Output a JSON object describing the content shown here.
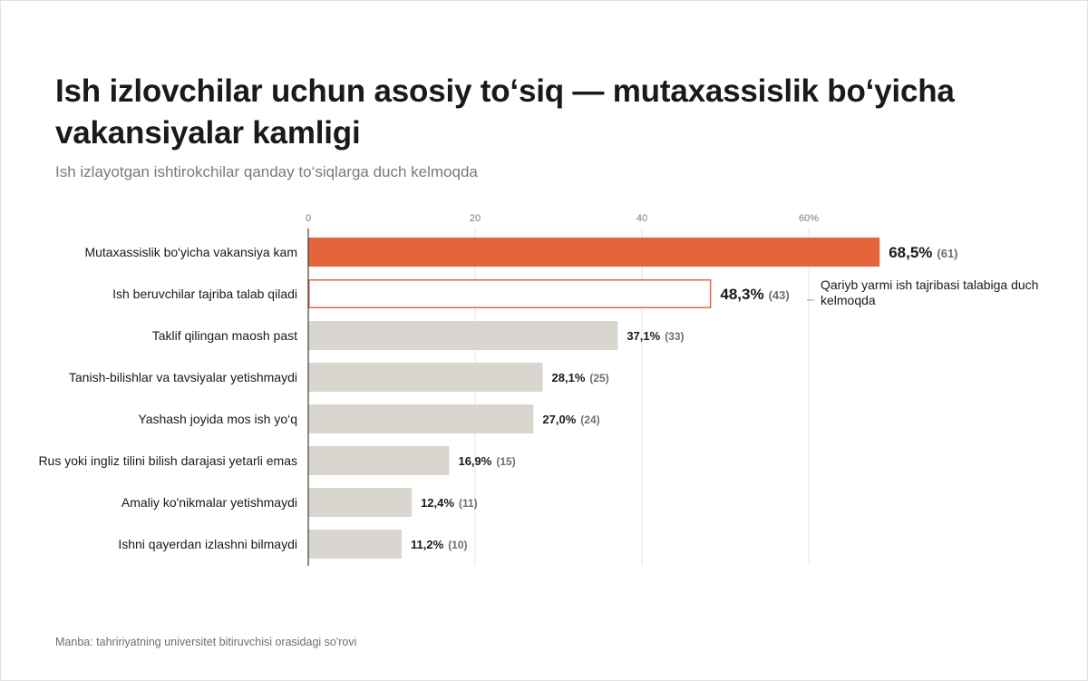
{
  "title": "Ish izlovchilar uchun asosiy to‘siq — mutaxassislik bo‘yicha vakansiyalar kamligi",
  "subtitle": "Ish izlayotgan ishtirokchilar qanday to‘siqlarga duch kelmoqda",
  "source": "Manba: tahririyatning universitet bitiruvchisi orasidagi so'rovi",
  "annotation": "Qariyb yarmi ish tajribasi talabiga duch kelmoqda",
  "colors": {
    "highlight": "#e5643c",
    "outline": "#e5643c",
    "bar": "#d9d6cf",
    "grid": "#e4e4e4",
    "axis": "#1a1a1a"
  },
  "chart_data": {
    "type": "bar",
    "orientation": "horizontal",
    "categories": [
      "Mutaxassislik bo'yicha vakansiya kam",
      "Ish beruvchilar tajriba talab qiladi",
      "Taklif qilingan maosh past",
      "Tanish-bilishlar va tavsiyalar yetishmaydi",
      "Yashash joyida mos ish yo‘q",
      "Rus yoki ingliz tilini bilish darajasi yetarli emas",
      "Amaliy ko'nikmalar yetishmaydi",
      "Ishni qayerdan izlashni bilmaydi"
    ],
    "values": [
      68.5,
      48.3,
      37.1,
      28.1,
      27.0,
      16.9,
      12.4,
      11.2
    ],
    "value_labels": [
      "68,5%",
      "48,3%",
      "37,1%",
      "28,1%",
      "27,0%",
      "16,9%",
      "12,4%",
      "11,2%"
    ],
    "counts": [
      "(61)",
      "(43)",
      "(33)",
      "(25)",
      "(24)",
      "(15)",
      "(11)",
      "(10)"
    ],
    "styles": [
      "highlight",
      "outline",
      "normal",
      "normal",
      "normal",
      "normal",
      "normal",
      "normal"
    ],
    "xticks": [
      0,
      20,
      40,
      60
    ],
    "xtick_labels": [
      "0",
      "20",
      "40",
      "60%"
    ],
    "xlim": [
      0,
      70
    ],
    "grid": true,
    "xaxis_position": "top"
  }
}
